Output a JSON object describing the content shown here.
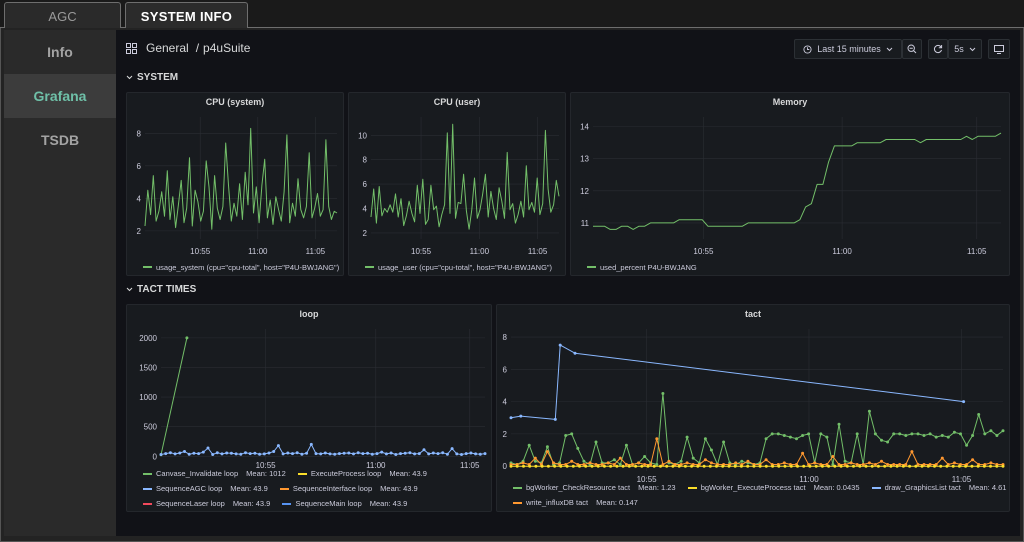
{
  "tabs": [
    {
      "label": "AGC"
    },
    {
      "label": "SYSTEM INFO"
    }
  ],
  "sidebar": {
    "items": [
      {
        "label": "Info"
      },
      {
        "label": "Grafana"
      },
      {
        "label": "TSDB"
      }
    ]
  },
  "breadcrumb": {
    "folder": "General",
    "separator": "/",
    "dashboard": "p4uSuite"
  },
  "toolbar": {
    "time_range": "Last 15 minutes",
    "refresh": "5s"
  },
  "rows": [
    {
      "title": "SYSTEM"
    },
    {
      "title": "TACT TIMES"
    }
  ],
  "colors": {
    "green": "#73bf69",
    "yellow": "#fade2a",
    "blue": "#8ab8ff",
    "orange": "#ff9830",
    "red": "#f2495c",
    "blue2": "#5794f2",
    "accent": "#6fc0a8"
  },
  "chart_data": [
    {
      "type": "line",
      "title": "CPU (system)",
      "x_ticks": [
        "10:55",
        "11:00",
        "11:05"
      ],
      "y_ticks": [
        "2",
        "4",
        "6",
        "8"
      ],
      "ylim": [
        1.5,
        9
      ],
      "series": [
        {
          "name": "usage_system (cpu=\"cpu-total\", host=\"P4U-BWJANG\")",
          "color": "#73bf69",
          "values": [
            2.3,
            4.5,
            3.0,
            5.4,
            2.6,
            3.2,
            4.4,
            2.9,
            5.7,
            2.7,
            4.1,
            2.2,
            3.6,
            5.1,
            2.5,
            3.4,
            6.5,
            2.3,
            4.5,
            3.8,
            2.6,
            3.2,
            6.3,
            4.7,
            2.1,
            5.4,
            3.4,
            2.7,
            3.5,
            7.4,
            4.8,
            2.6,
            3.7,
            2.9,
            4.9,
            2.7,
            5.6,
            3.6,
            8.3,
            3.1,
            4.7,
            2.5,
            4.8,
            6.4,
            2.8,
            3.9,
            2.4,
            4.1,
            3.3,
            2.6,
            4.4,
            7.9,
            2.5,
            3.7,
            2.9,
            5.2,
            3.3,
            2.8,
            3.5,
            6.8,
            2.8,
            3.4,
            4.3,
            2.9,
            3.3,
            7.6,
            3.5,
            2.7,
            3.2,
            3.1
          ]
        }
      ]
    },
    {
      "type": "line",
      "title": "CPU (user)",
      "x_ticks": [
        "10:55",
        "11:00",
        "11:05"
      ],
      "y_ticks": [
        "2",
        "4",
        "6",
        "8",
        "10"
      ],
      "ylim": [
        1.5,
        11.5
      ],
      "series": [
        {
          "name": "usage_user (cpu=\"cpu-total\", host=\"P4U-BWJANG\")",
          "color": "#73bf69",
          "values": [
            3.3,
            5.6,
            2.8,
            5.8,
            3.4,
            4.0,
            3.7,
            4.3,
            3.7,
            5.2,
            3.3,
            4.8,
            2.6,
            3.4,
            4.6,
            3.6,
            2.9,
            5.9,
            3.6,
            6.4,
            2.7,
            3.1,
            5.9,
            3.9,
            4.2,
            2.5,
            3.5,
            4.3,
            10.2,
            3.6,
            10.9,
            3.2,
            4.5,
            4.4,
            6.8,
            3.8,
            2.3,
            3.9,
            6.5,
            3.2,
            3.9,
            5.2,
            6.8,
            3.3,
            5.4,
            4.0,
            3.1,
            5.7,
            4.6,
            3.2,
            8.6,
            3.9,
            4.4,
            2.8,
            3.5,
            4.6,
            3.3,
            7.5,
            3.9,
            4.5,
            3.7,
            6.5,
            3.5,
            4.4,
            10.4,
            5.6,
            3.7,
            4.3,
            6.3,
            5.0
          ]
        }
      ]
    },
    {
      "type": "line",
      "title": "Memory",
      "x_ticks": [
        "10:55",
        "11:00",
        "11:05"
      ],
      "y_ticks": [
        "11",
        "12",
        "13",
        "14"
      ],
      "ylim": [
        10.5,
        14.3
      ],
      "series": [
        {
          "name": "used_percent P4U-BWJANG",
          "color": "#73bf69",
          "values": [
            10.9,
            10.9,
            10.9,
            10.8,
            10.8,
            10.9,
            10.9,
            10.8,
            10.9,
            10.9,
            11.0,
            11.0,
            11.0,
            11.0,
            11.0,
            11.1,
            11.1,
            11.1,
            11.1,
            11.1,
            10.9,
            10.9,
            10.9,
            10.9,
            10.9,
            10.9,
            10.9,
            11.0,
            11.0,
            11.0,
            11.0,
            11.0,
            11.0,
            11.0,
            11.0,
            11.0,
            11.1,
            11.5,
            11.6,
            12.2,
            12.2,
            12.9,
            13.4,
            13.4,
            13.4,
            13.4,
            13.5,
            13.5,
            13.5,
            13.5,
            13.5,
            13.6,
            13.6,
            13.6,
            13.6,
            13.6,
            13.6,
            13.5,
            13.6,
            13.6,
            13.6,
            13.6,
            13.6,
            13.6,
            13.6,
            13.7,
            13.6,
            13.7,
            13.7,
            13.7,
            13.7,
            13.8
          ]
        }
      ]
    },
    {
      "type": "line",
      "title": "loop",
      "x_ticks": [
        "10:55",
        "11:00",
        "11:05"
      ],
      "y_ticks": [
        "0",
        "500",
        "1000",
        "1500",
        "2000"
      ],
      "ylim": [
        -80,
        2150
      ],
      "legend": [
        {
          "name": "Canvase_Invalidate loop",
          "mean": "Mean: 1012",
          "color": "#73bf69"
        },
        {
          "name": "ExecuteProcess loop",
          "mean": "Mean: 43.9",
          "color": "#fade2a"
        },
        {
          "name": "SequenceAGC loop",
          "mean": "Mean: 43.9",
          "color": "#8ab8ff"
        },
        {
          "name": "SequenceInterface loop",
          "mean": "Mean: 43.9",
          "color": "#ff9830"
        },
        {
          "name": "SequenceLaser loop",
          "mean": "Mean: 43.9",
          "color": "#f2495c"
        },
        {
          "name": "SequenceMain loop",
          "mean": "Mean: 43.9",
          "color": "#5794f2"
        }
      ],
      "series": [
        {
          "name": "Canvase_Invalidate loop",
          "color": "#73bf69",
          "x": [
            0.0,
            0.08
          ],
          "values": [
            24,
            2000
          ]
        },
        {
          "name": "SequenceAGC loop",
          "color": "#8ab8ff",
          "values": [
            30,
            45,
            60,
            40,
            55,
            80,
            35,
            50,
            45,
            70,
            140,
            30,
            60,
            40,
            55,
            50,
            40,
            35,
            60,
            45,
            50,
            35,
            40,
            55,
            80,
            180,
            40,
            55,
            45,
            60,
            35,
            50,
            200,
            45,
            40,
            55,
            40,
            35,
            45,
            50,
            55,
            40,
            60,
            45,
            50,
            35,
            45,
            70,
            40,
            55,
            30,
            45,
            50,
            60,
            40,
            45,
            110,
            40,
            55,
            45,
            60,
            35,
            130,
            40,
            30,
            45,
            55,
            40,
            35,
            45
          ]
        }
      ]
    },
    {
      "type": "line",
      "title": "tact",
      "x_ticks": [
        "10:55",
        "11:00",
        "11:05"
      ],
      "y_ticks": [
        "0",
        "2",
        "4",
        "6",
        "8"
      ],
      "ylim": [
        -0.3,
        8.5
      ],
      "legend": [
        {
          "name": "bgWorker_CheckResource tact",
          "mean": "Mean: 1.23",
          "color": "#73bf69"
        },
        {
          "name": "bgWorker_ExecuteProcess tact",
          "mean": "Mean: 0.0435",
          "color": "#fade2a"
        },
        {
          "name": "draw_GraphicsList tact",
          "mean": "Mean: 4.61",
          "color": "#8ab8ff"
        },
        {
          "name": "write_influxDB tact",
          "mean": "Mean: 0.147",
          "color": "#ff9830"
        }
      ],
      "series": [
        {
          "name": "draw_GraphicsList tact",
          "color": "#8ab8ff",
          "x": [
            0.0,
            0.02,
            0.09,
            0.1,
            0.13,
            0.92
          ],
          "values": [
            3.0,
            3.1,
            2.9,
            7.5,
            7.0,
            4.0
          ]
        },
        {
          "name": "bgWorker_CheckResource tact",
          "color": "#73bf69",
          "values": [
            0.2,
            0.1,
            0.3,
            1.3,
            0.3,
            0.2,
            1.2,
            0.1,
            0.2,
            1.9,
            2.0,
            1.1,
            0.3,
            0.1,
            1.5,
            0.2,
            0.2,
            0.4,
            0.1,
            1.3,
            0.1,
            0.2,
            0.6,
            0.2,
            0.1,
            4.5,
            0.2,
            0.1,
            0.3,
            1.8,
            0.5,
            0.2,
            1.7,
            1.0,
            0.1,
            1.5,
            0.2,
            0.1,
            0.3,
            0.2,
            0.1,
            0.2,
            1.7,
            2.0,
            2.0,
            1.9,
            1.8,
            1.7,
            1.9,
            2.0,
            0.2,
            2.0,
            1.8,
            0.1,
            2.6,
            0.3,
            0.2,
            2.0,
            0.1,
            3.4,
            2.0,
            1.6,
            1.5,
            2.0,
            2.0,
            1.9,
            2.0,
            2.0,
            1.9,
            2.0,
            1.8,
            1.9,
            1.8,
            2.1,
            2.0,
            1.3,
            1.9,
            3.2,
            2.0,
            2.2,
            1.9,
            2.2
          ]
        },
        {
          "name": "write_influxDB tact",
          "color": "#ff9830",
          "values": [
            0.1,
            0.1,
            0.2,
            0.1,
            0.5,
            0.1,
            0.9,
            0.2,
            0.1,
            0.1,
            0.3,
            0.1,
            0.1,
            0.2,
            0.1,
            0.1,
            0.2,
            0.1,
            0.5,
            0.1,
            0.1,
            0.2,
            0.1,
            0.1,
            1.7,
            0.1,
            0.3,
            0.1,
            0.1,
            0.2,
            0.1,
            0.1,
            0.4,
            0.2,
            0.1,
            0.1,
            0.1,
            0.2,
            0.1,
            0.3,
            0.1,
            0.1,
            0.4,
            0.1,
            0.1,
            0.2,
            0.1,
            0.1,
            0.8,
            0.1,
            0.2,
            0.1,
            0.1,
            0.6,
            0.1,
            0.1,
            0.2,
            0.1,
            0.1,
            0.2,
            0.1,
            0.3,
            0.1,
            0.1,
            0.1,
            0.1,
            0.9,
            0.1,
            0.1,
            0.1,
            0.1,
            0.5,
            0.1,
            0.2,
            0.1,
            0.1,
            0.4,
            0.1,
            0.1,
            0.2,
            0.1,
            0.1
          ]
        },
        {
          "name": "bgWorker_ExecuteProcess tact",
          "color": "#fade2a",
          "values": [
            0.0,
            0.0,
            0.0,
            0.0,
            0.0,
            0.0,
            0.0,
            0.0,
            0.0,
            0.0,
            0.0,
            0.0,
            0.0,
            0.0,
            0.0,
            0.0,
            0.0,
            0.0,
            0.0,
            0.0,
            0.0,
            0.0,
            0.0,
            0.0,
            0.0,
            0.0,
            0.0,
            0.0,
            0.0,
            0.0,
            0.0,
            0.0,
            0.0,
            0.0,
            0.0,
            0.0,
            0.0,
            0.0,
            0.0,
            0.0,
            0.0,
            0.0,
            0.0,
            0.0,
            0.0,
            0.0,
            0.0,
            0.0,
            0.0,
            0.0,
            0.0,
            0.0,
            0.0,
            0.0,
            0.0,
            0.0,
            0.0,
            0.0,
            0.0,
            0.0,
            0.0,
            0.0,
            0.0,
            0.0,
            0.0,
            0.0,
            0.0,
            0.0,
            0.0,
            0.0,
            0.0,
            0.0,
            0.0,
            0.0,
            0.0,
            0.0,
            0.0,
            0.0,
            0.0,
            0.0
          ]
        }
      ]
    }
  ]
}
